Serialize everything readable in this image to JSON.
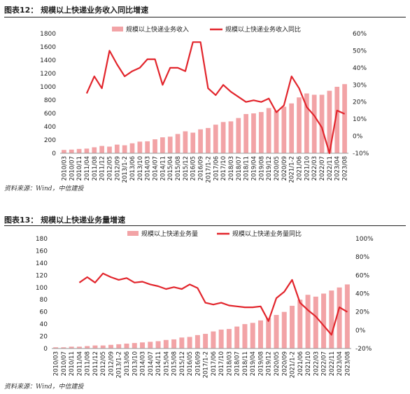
{
  "colors": {
    "bar": "#f2a3a6",
    "line": "#e2252c",
    "text": "#222222"
  },
  "figures": [
    {
      "title": "图表12：  规模以上快递业务收入同比增速",
      "source": "资料来源：Wind，中信建投",
      "legend": {
        "bar": "规模以上快递业务收入",
        "line": "规模以上快递业务收入同比"
      },
      "left_ticks": [
        "1800",
        "1600",
        "1400",
        "1200",
        "1000",
        "800",
        "600",
        "400",
        "200",
        "0"
      ],
      "right_ticks": [
        "60%",
        "50%",
        "40%",
        "30%",
        "20%",
        "10%",
        "0%",
        "-10%"
      ],
      "x_labels": [
        "2010/03",
        "2010/07",
        "2010/11",
        "2011/04",
        "2011/08",
        "2011/12",
        "2012/05",
        "2012/09",
        "2013/1-2",
        "2013/06",
        "2013/10",
        "2014/03",
        "2014/07",
        "2014/11",
        "2015/04",
        "2015/08",
        "2015/12",
        "2016/05",
        "2016/09",
        "2017/1-2",
        "2017/06",
        "2017/10",
        "2018/03",
        "2018/07",
        "2018/11",
        "2019/04",
        "2019/08",
        "2019/12",
        "2020/05",
        "2020/09",
        "2021/1-2",
        "2021/06",
        "2021/10",
        "2022/03",
        "2022/07",
        "2022/11",
        "2023/04",
        "2023/08"
      ]
    },
    {
      "title": "图表13：  规模以上快递业务量增速",
      "source": "资料来源：Wind，中信建投",
      "legend": {
        "bar": "规模以上快递业务量",
        "line": "规模以上快递业务量同比"
      },
      "left_ticks": [
        "180",
        "160",
        "140",
        "120",
        "100",
        "80",
        "60",
        "40",
        "20",
        "0"
      ],
      "right_ticks": [
        "100%",
        "80%",
        "60%",
        "40%",
        "20%",
        "0%",
        "-20%"
      ],
      "x_labels": [
        "2010/03",
        "2010/07",
        "2010/11",
        "2011/04",
        "2011/08",
        "2011/12",
        "2012/05",
        "2012/09",
        "2013/1-2",
        "2013/06",
        "2013/10",
        "2014/03",
        "2014/07",
        "2014/11",
        "2015/04",
        "2015/08",
        "2015/12",
        "2016/05",
        "2016/09",
        "2017/1-2",
        "2017/06",
        "2017/10",
        "2018/03",
        "2018/07",
        "2018/11",
        "2019/04",
        "2019/08",
        "2019/12",
        "2020/05",
        "2020/09",
        "2021/1-2",
        "2021/06",
        "2021/10",
        "2022/03",
        "2022/07",
        "2022/11",
        "2023/04",
        "2023/08"
      ]
    }
  ],
  "chart_data": [
    {
      "type": "bar+line",
      "title": "规模以上快递业务收入同比增速",
      "categories": [
        "2010/03",
        "2010/07",
        "2010/11",
        "2011/04",
        "2011/08",
        "2011/12",
        "2012/05",
        "2012/09",
        "2013/1-2",
        "2013/06",
        "2013/10",
        "2014/03",
        "2014/07",
        "2014/11",
        "2015/04",
        "2015/08",
        "2015/12",
        "2016/05",
        "2016/09",
        "2017/1-2",
        "2017/06",
        "2017/10",
        "2018/03",
        "2018/07",
        "2018/11",
        "2019/04",
        "2019/08",
        "2019/12",
        "2020/05",
        "2020/09",
        "2021/1-2",
        "2021/06",
        "2021/10",
        "2022/03",
        "2022/07",
        "2022/11",
        "2023/04",
        "2023/08"
      ],
      "series": [
        {
          "name": "规模以上快递业务收入",
          "axis": "left",
          "values": [
            50,
            55,
            65,
            70,
            90,
            110,
            100,
            130,
            120,
            150,
            175,
            180,
            210,
            240,
            250,
            290,
            330,
            310,
            360,
            380,
            430,
            470,
            480,
            530,
            590,
            600,
            620,
            680,
            640,
            700,
            750,
            840,
            900,
            880,
            880,
            940,
            1000,
            1040
          ]
        },
        {
          "name": "规模以上快递业务收入同比",
          "axis": "right",
          "values": [
            null,
            null,
            null,
            25,
            35,
            28,
            50,
            42,
            35,
            38,
            40,
            45,
            45,
            30,
            40,
            40,
            38,
            55,
            55,
            28,
            24,
            30,
            26,
            23,
            20,
            21,
            20,
            22,
            14,
            18,
            35,
            28,
            17,
            12,
            5,
            -10,
            15,
            13
          ]
        }
      ],
      "ylim_left": [
        0,
        1800
      ],
      "ylim_right": [
        -10,
        60
      ],
      "legend": "top"
    },
    {
      "type": "bar+line",
      "title": "规模以上快递业务量增速",
      "categories": [
        "2010/03",
        "2010/07",
        "2010/11",
        "2011/04",
        "2011/08",
        "2011/12",
        "2012/05",
        "2012/09",
        "2013/1-2",
        "2013/06",
        "2013/10",
        "2014/03",
        "2014/07",
        "2014/11",
        "2015/04",
        "2015/08",
        "2015/12",
        "2016/05",
        "2016/09",
        "2017/1-2",
        "2017/06",
        "2017/10",
        "2018/03",
        "2018/07",
        "2018/11",
        "2019/04",
        "2019/08",
        "2019/12",
        "2020/05",
        "2020/09",
        "2021/1-2",
        "2021/06",
        "2021/10",
        "2022/03",
        "2022/07",
        "2022/11",
        "2023/04",
        "2023/08"
      ],
      "series": [
        {
          "name": "规模以上快递业务量",
          "axis": "left",
          "values": [
            2,
            2,
            3,
            3,
            4,
            5,
            5,
            6,
            7,
            8,
            9,
            10,
            11,
            12,
            14,
            15,
            18,
            19,
            22,
            24,
            28,
            31,
            32,
            36,
            40,
            42,
            46,
            50,
            55,
            60,
            70,
            80,
            88,
            85,
            90,
            95,
            100,
            105
          ]
        },
        {
          "name": "规模以上快递业务量同比",
          "axis": "right",
          "values": [
            null,
            null,
            null,
            52,
            58,
            52,
            62,
            58,
            55,
            57,
            52,
            53,
            50,
            48,
            45,
            47,
            45,
            50,
            46,
            30,
            28,
            30,
            27,
            26,
            25,
            25,
            26,
            10,
            35,
            42,
            55,
            30,
            22,
            15,
            5,
            -5,
            25,
            20
          ]
        }
      ],
      "ylim_left": [
        0,
        180
      ],
      "ylim_right": [
        -20,
        100
      ],
      "legend": "top"
    }
  ]
}
